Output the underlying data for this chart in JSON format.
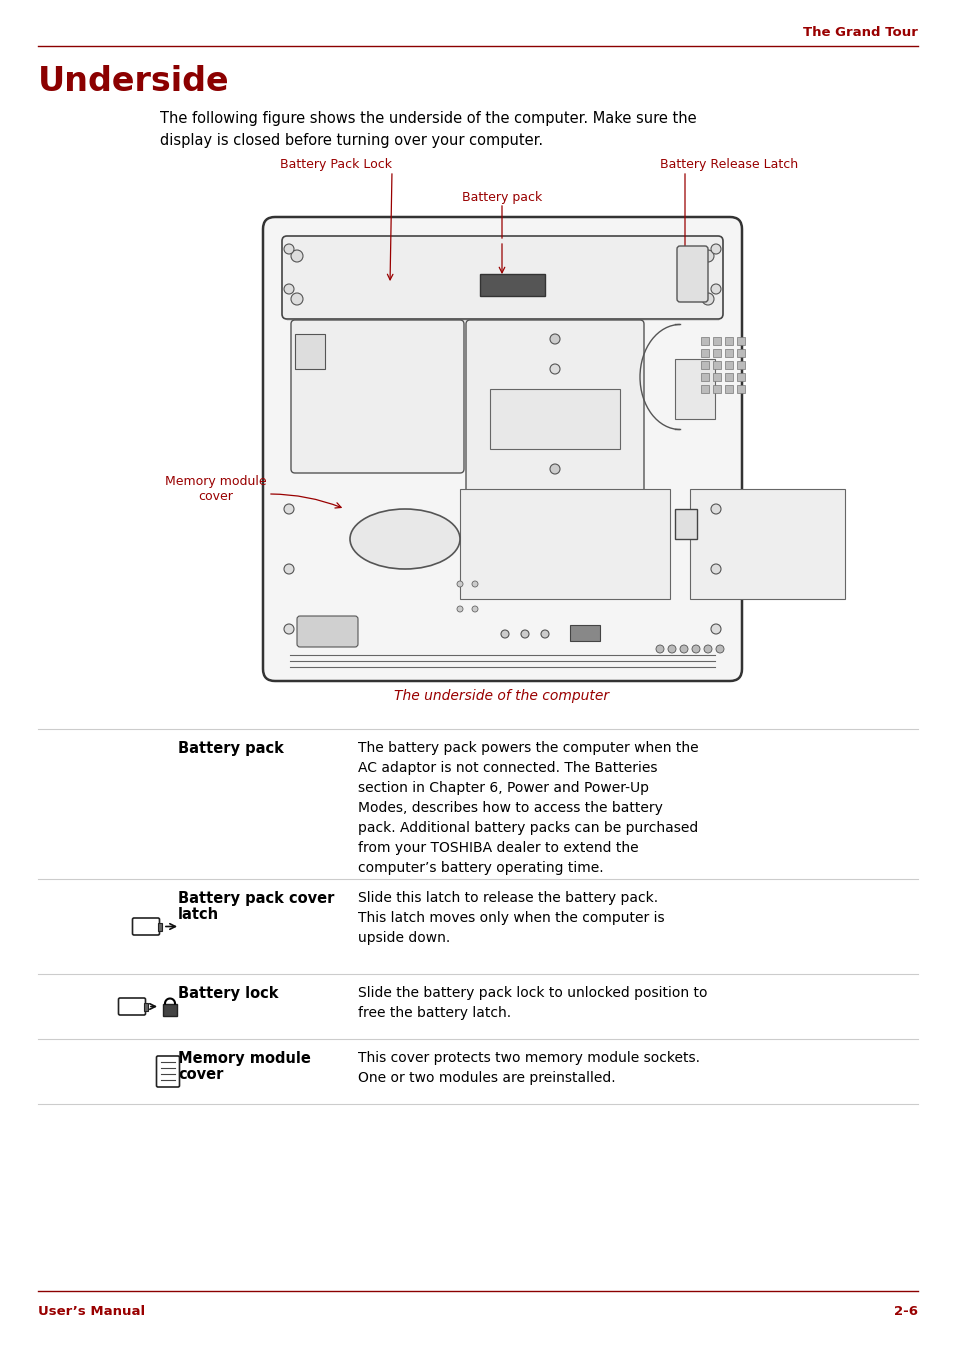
{
  "title_right": "The Grand Tour",
  "section_title": "Underside",
  "intro_text": "The following figure shows the underside of the computer. Make sure the\ndisplay is closed before turning over your computer.",
  "diagram_caption": "The underside of the computer",
  "labels": {
    "battery_pack": "Battery pack",
    "battery_pack_lock": "Battery Pack Lock",
    "battery_release_latch": "Battery Release Latch",
    "memory_module_cover": "Memory module\ncover"
  },
  "table_rows": [
    {
      "icon": "none",
      "term": "Battery pack",
      "description": "The battery pack powers the computer when the\nAC adaptor is not connected. The Batteries\nsection in Chapter 6, Power and Power-Up\nModes, describes how to access the battery\npack. Additional battery packs can be purchased\nfrom your TOSHIBA dealer to extend the\ncomputer’s battery operating time."
    },
    {
      "icon": "latch",
      "term": "Battery pack cover\nlatch",
      "description": "Slide this latch to release the battery pack.\nThis latch moves only when the computer is\nupside down."
    },
    {
      "icon": "lock",
      "term": "Battery lock",
      "description": "Slide the battery pack lock to unlocked position to\nfree the battery latch."
    },
    {
      "icon": "memory",
      "term": "Memory module\ncover",
      "description": "This cover protects two memory module sockets.\nOne or two modules are preinstalled."
    }
  ],
  "footer_left": "User’s Manual",
  "footer_right": "2-6",
  "red_color": "#990000",
  "dark_red": "#8B0000",
  "text_color": "#000000",
  "table_line_color": "#cccccc",
  "bg_color": "#ffffff"
}
